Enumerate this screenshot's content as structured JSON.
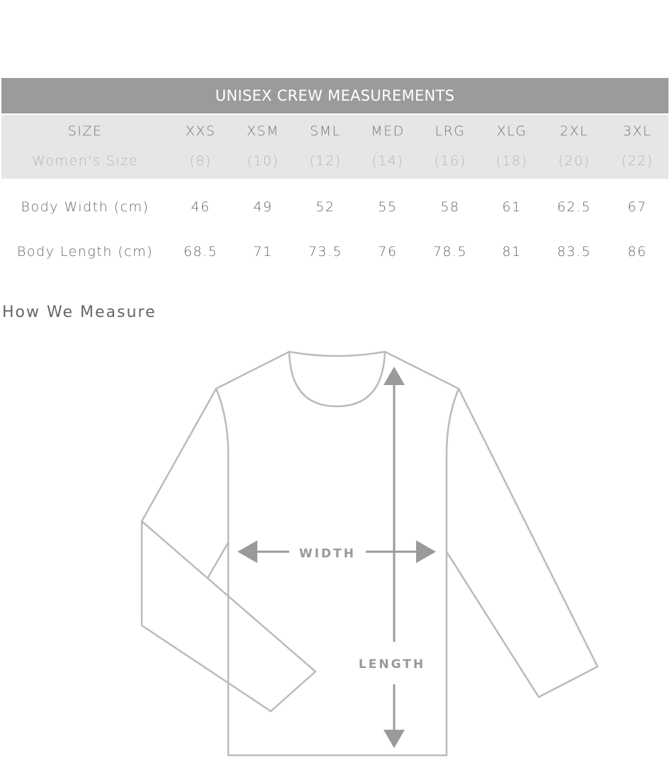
{
  "table": {
    "title": "UNISEX CREW MEASUREMENTS",
    "size_row": {
      "label": "SIZE",
      "values": [
        "XXS",
        "XSM",
        "SML",
        "MED",
        "LRG",
        "XLG",
        "2XL",
        "3XL"
      ]
    },
    "womens_row": {
      "label": "Women's Size",
      "values": [
        "(8)",
        "(10)",
        "(12)",
        "(14)",
        "(16)",
        "(18)",
        "(20)",
        "(22)"
      ]
    },
    "rows": [
      {
        "label": "Body Width (cm)",
        "values": [
          "46",
          "49",
          "52",
          "55",
          "58",
          "61",
          "62.5",
          "67"
        ]
      },
      {
        "label": "Body Length (cm)",
        "values": [
          "68.5",
          "71",
          "73.5",
          "76",
          "78.5",
          "81",
          "83.5",
          "86"
        ]
      }
    ]
  },
  "how_we_measure": {
    "heading": "How We Measure",
    "width_label": "WIDTH",
    "length_label": "LENGTH"
  },
  "colors": {
    "header_bg": "#9b9b9b",
    "band_bg": "#e6e6e6",
    "outline": "#bbbbbb",
    "arrow": "#9a9a9a"
  }
}
